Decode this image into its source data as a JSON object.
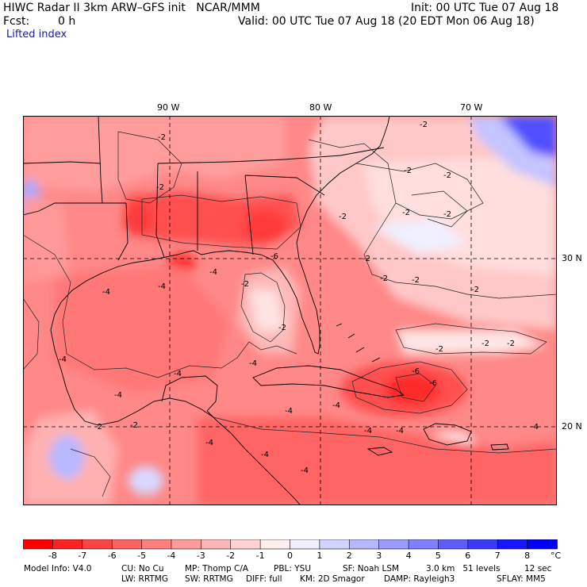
{
  "header": {
    "title": "HIWC Radar II 3km ARW–GFS init   NCAR/MMM",
    "init": "Init: 00 UTC Tue 07 Aug 18",
    "fcst_label": "Fcst:",
    "fcst_value": "0 h",
    "valid": "Valid: 00 UTC Tue 07 Aug 18 (20 EDT Mon 06 Aug 18)",
    "field": "Lifted index"
  },
  "axes": {
    "lon_labels": [
      "90 W",
      "80 W",
      "70 W"
    ],
    "lat_labels": [
      "30 N",
      "20 N"
    ]
  },
  "colorbar": {
    "ticks": [
      "-8",
      "-7",
      "-6",
      "-5",
      "-4",
      "-3",
      "-2",
      "-1",
      "0",
      "1",
      "2",
      "3",
      "4",
      "5",
      "6",
      "7",
      "8"
    ],
    "unit": "°C",
    "colors": [
      "#ff0000",
      "#ff2222",
      "#ff4444",
      "#ff6262",
      "#ff7f7f",
      "#ff9b9b",
      "#ffb7b7",
      "#ffd3d3",
      "#ffeeee",
      "#eeeeff",
      "#d3d3ff",
      "#b7b7ff",
      "#9b9bff",
      "#7f7fff",
      "#5c5cff",
      "#3a3aff",
      "#1515ff",
      "#0000ff"
    ]
  },
  "footer": {
    "line1_a": "Model Info: V4.0",
    "line1_b": "CU: No Cu",
    "line1_c": "MP: Thomp C/A",
    "line1_d": "PBL: YSU",
    "line1_e": "SF: Noah LSM",
    "line1_f": "3.0 km   51 levels",
    "line1_g": "12 sec",
    "line2_a": "LW: RRTMG",
    "line2_b": "SW: RRTMG",
    "line2_c": "DIFF: full",
    "line2_d": "KM: 2D Smagor",
    "line2_e": "DAMP: Rayleigh3",
    "line2_f": "SFLAY: MM5"
  },
  "contour_labels": [
    "-2",
    "-4",
    "-6"
  ]
}
